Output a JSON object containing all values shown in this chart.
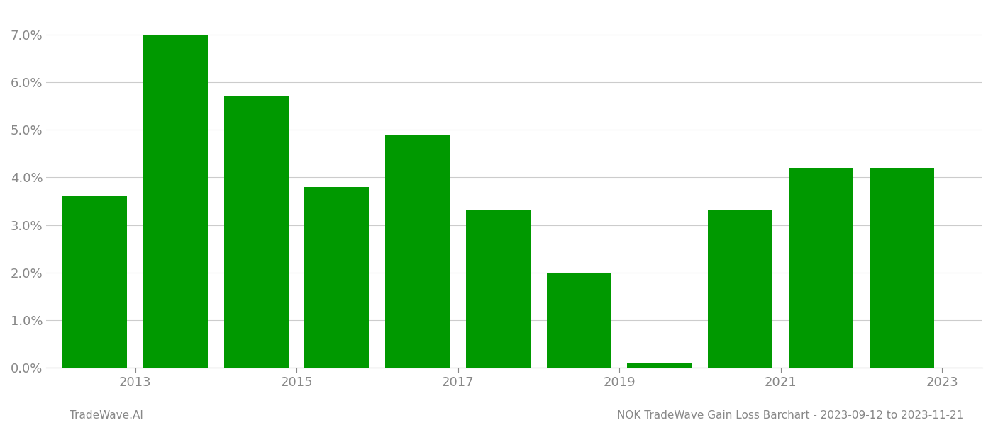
{
  "years": [
    2013,
    2014,
    2015,
    2016,
    2017,
    2018,
    2019,
    2020,
    2021,
    2022,
    2023
  ],
  "values": [
    0.036,
    0.07,
    0.057,
    0.038,
    0.049,
    0.033,
    0.02,
    0.001,
    0.033,
    0.042,
    0.042
  ],
  "bar_color": "#009900",
  "background_color": "#ffffff",
  "grid_color": "#cccccc",
  "axis_color": "#888888",
  "tick_color": "#888888",
  "ylim": [
    0,
    0.075
  ],
  "yticks": [
    0.0,
    0.01,
    0.02,
    0.03,
    0.04,
    0.05,
    0.06,
    0.07
  ],
  "xtick_labels": [
    "2013",
    "2015",
    "2017",
    "2019",
    "2021",
    "2023"
  ],
  "xtick_positions": [
    2013.5,
    2015.5,
    2017.5,
    2019.5,
    2021.5,
    2023.5
  ],
  "xlim": [
    2012.4,
    2024.0
  ],
  "bar_width": 0.8,
  "footer_left": "TradeWave.AI",
  "footer_right": "NOK TradeWave Gain Loss Barchart - 2023-09-12 to 2023-11-21",
  "footer_color": "#888888",
  "footer_fontsize": 11
}
